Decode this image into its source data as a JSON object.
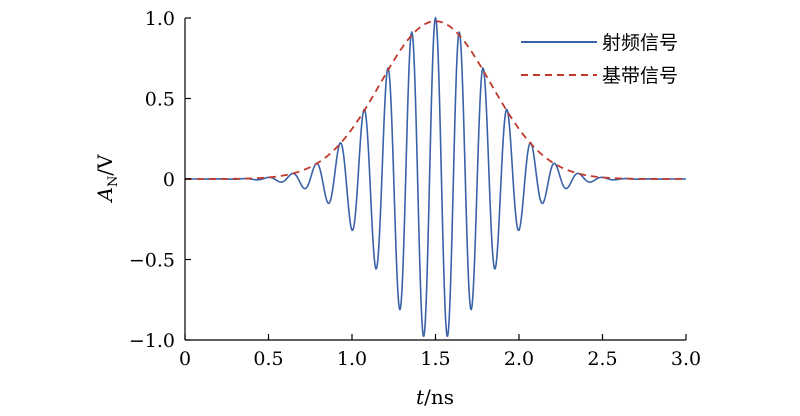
{
  "chart_data": {
    "type": "line",
    "xlabel": {
      "italic": "t",
      "rest": "/ns"
    },
    "ylabel": {
      "italic": "A",
      "sub": "N",
      "rest": "/V"
    },
    "xlim": [
      0,
      3.0
    ],
    "ylim": [
      -1.0,
      1.0
    ],
    "x_ticks": [
      0,
      0.5,
      1.0,
      1.5,
      2.0,
      2.5,
      3.0
    ],
    "x_tick_labels": [
      "0",
      "0.5",
      "1.0",
      "1.5",
      "2.0",
      "2.5",
      "3.0"
    ],
    "y_ticks": [
      -1.0,
      -0.5,
      0,
      0.5,
      1.0
    ],
    "y_tick_labels": [
      "−1.0",
      "−0.5",
      "0",
      "0.5",
      "1.0"
    ],
    "grid": false,
    "legend_position": "top-right",
    "series": [
      {
        "name": "射频信号",
        "style": "solid",
        "color": "#3a62a8",
        "function": "gaussian-modulated cosine",
        "carrier_frequency_ghz": 7.0,
        "peak_time_ns": 1.5,
        "envelope_sigma_ns": 0.33,
        "amplitude": 1.0,
        "x": [
          0.5,
          0.7,
          0.8,
          0.94,
          1.0,
          1.07,
          1.14,
          1.21,
          1.29,
          1.36,
          1.43,
          1.5,
          1.57,
          1.64,
          1.71,
          1.79,
          1.86,
          1.93,
          2.0,
          2.07,
          2.14,
          2.21,
          2.3
        ],
        "y": [
          0.0,
          0.03,
          0.1,
          0.2,
          -0.18,
          0.4,
          -0.55,
          0.64,
          -0.77,
          0.87,
          -0.95,
          0.95,
          -0.95,
          0.87,
          -0.77,
          0.64,
          -0.55,
          0.4,
          -0.25,
          0.2,
          -0.13,
          0.05,
          0.0
        ]
      },
      {
        "name": "基带信号",
        "style": "dashed",
        "color": "#c0392b",
        "function": "gaussian envelope",
        "peak_time_ns": 1.5,
        "envelope_sigma_ns": 0.33,
        "amplitude": 0.98,
        "x": [
          0.5,
          0.8,
          1.0,
          1.2,
          1.35,
          1.5,
          1.65,
          1.8,
          2.0,
          2.2,
          2.5
        ],
        "y": [
          0.01,
          0.1,
          0.3,
          0.65,
          0.88,
          0.98,
          0.88,
          0.65,
          0.3,
          0.1,
          0.01
        ]
      }
    ]
  }
}
